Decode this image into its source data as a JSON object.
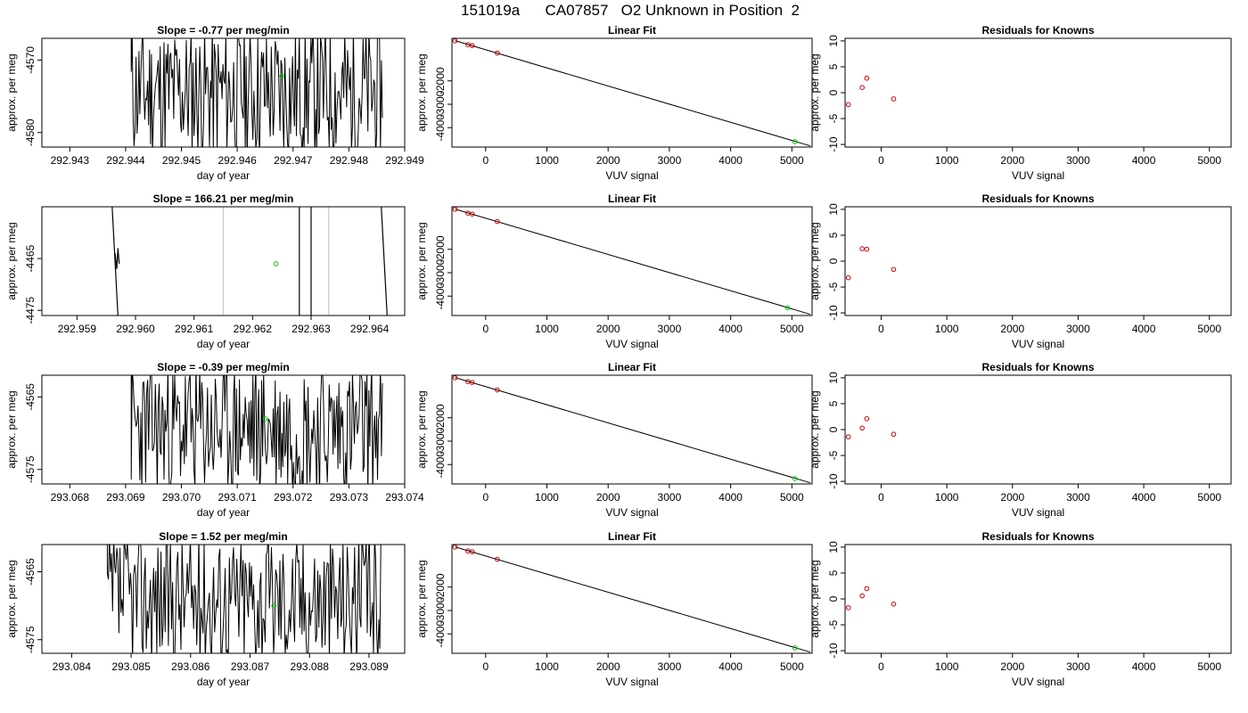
{
  "figure": {
    "title": "151019a      CA07857   O2 Unknown in Position  2"
  },
  "chart_data": [
    {
      "type": "line",
      "title": "Slope =  -0.77  per meg/min",
      "xlabel": "day of year",
      "ylabel": "approx. per meg",
      "xlim": [
        292.9425,
        292.949
      ],
      "ylim": [
        -4582,
        -4567
      ],
      "xticks": [
        "292.943",
        "292.944",
        "292.945",
        "292.946",
        "292.947",
        "292.948",
        "292.949"
      ],
      "yticks": [
        "-4570",
        "-4580"
      ],
      "trace": {
        "x_start": 292.9441,
        "x_end": 292.9486,
        "y_low": -4582,
        "y_high": -4567,
        "seed": 11
      },
      "unknown_point": {
        "x": 292.9468,
        "y": -4572.2,
        "color": "#00cc00"
      },
      "gray_lines": []
    },
    {
      "type": "scatter",
      "title": "Linear Fit",
      "xlabel": "VUV signal",
      "ylabel": "approx. per meg",
      "xlim": [
        -550,
        5330
      ],
      "ylim": [
        -4830,
        -180
      ],
      "xticks": [
        "0",
        "1000",
        "2000",
        "3000",
        "4000",
        "5000"
      ],
      "yticks": [
        "-2000",
        "-3000",
        "-4000"
      ],
      "fit_line": {
        "x": [
          -500,
          5300
        ],
        "y": [
          -280,
          -4780
        ]
      },
      "knowns": {
        "x": [
          -500,
          -290,
          -220,
          190
        ],
        "y": [
          -290,
          -450,
          -490,
          -810
        ],
        "color": "#cc0000"
      },
      "unknown_point": {
        "x": 5050,
        "y": -4600,
        "color": "#00cc00"
      }
    },
    {
      "type": "scatter",
      "title": "Residuals for Knowns",
      "xlabel": "VUV signal",
      "ylabel": "approx. per meg",
      "xlim": [
        -550,
        5330
      ],
      "ylim": [
        -10.5,
        10.5
      ],
      "xticks": [
        "0",
        "1000",
        "2000",
        "3000",
        "4000",
        "5000"
      ],
      "yticks": [
        "-10",
        "-5",
        "0",
        "5",
        "10"
      ],
      "points": {
        "x": [
          -500,
          -290,
          -220,
          190
        ],
        "y": [
          -2.3,
          1.0,
          2.8,
          -1.2
        ],
        "color": "#cc0000"
      }
    },
    {
      "type": "line",
      "title": "Slope =  166.21  per meg/min",
      "xlabel": "day of year",
      "ylabel": "approx. per meg",
      "xlim": [
        292.9584,
        292.9646
      ],
      "ylim": [
        -4476,
        -4455
      ],
      "xticks": [
        "292.959",
        "292.960",
        "292.961",
        "292.962",
        "292.963",
        "292.964"
      ],
      "yticks": [
        "-4465",
        "-4475"
      ],
      "segments": [
        {
          "x": [
            292.9596,
            292.9597
          ],
          "y": [
            -4455,
            -4476
          ]
        },
        {
          "x": [
            292.95965,
            292.95968,
            292.9597,
            292.95972
          ],
          "y": [
            -4464,
            -4467,
            -4463,
            -4466
          ]
        },
        {
          "x": [
            292.9628,
            292.9628
          ],
          "y": [
            -4455,
            -4476
          ]
        },
        {
          "x": [
            292.963,
            292.963
          ],
          "y": [
            -4455,
            -4476
          ]
        },
        {
          "x": [
            292.9642,
            292.9643
          ],
          "y": [
            -4455,
            -4476
          ]
        }
      ],
      "unknown_point": {
        "x": 292.9624,
        "y": -4466.0,
        "color": "#00cc00"
      },
      "gray_lines": [
        292.9615,
        292.9633
      ]
    },
    {
      "type": "scatter",
      "title": "Linear Fit",
      "xlabel": "VUV signal",
      "ylabel": "approx. per meg",
      "xlim": [
        -550,
        5330
      ],
      "ylim": [
        -4830,
        -180
      ],
      "xticks": [
        "0",
        "1000",
        "2000",
        "3000",
        "4000",
        "5000"
      ],
      "yticks": [
        "-2000",
        "-3000",
        "-4000"
      ],
      "fit_line": {
        "x": [
          -500,
          5300
        ],
        "y": [
          -280,
          -4780
        ]
      },
      "knowns": {
        "x": [
          -500,
          -290,
          -220,
          190
        ],
        "y": [
          -290,
          -450,
          -490,
          -810
        ],
        "color": "#cc0000"
      },
      "unknown_point": {
        "x": 4930,
        "y": -4500,
        "color": "#00cc00"
      }
    },
    {
      "type": "scatter",
      "title": "Residuals for Knowns",
      "xlabel": "VUV signal",
      "ylabel": "approx. per meg",
      "xlim": [
        -550,
        5330
      ],
      "ylim": [
        -10.5,
        10.5
      ],
      "xticks": [
        "0",
        "1000",
        "2000",
        "3000",
        "4000",
        "5000"
      ],
      "yticks": [
        "-10",
        "-5",
        "0",
        "5",
        "10"
      ],
      "points": {
        "x": [
          -500,
          -290,
          -220,
          190
        ],
        "y": [
          -3.2,
          2.4,
          2.3,
          -1.6
        ],
        "color": "#cc0000"
      }
    },
    {
      "type": "line",
      "title": "Slope =  -0.39  per meg/min",
      "xlabel": "day of year",
      "ylabel": "approx. per meg",
      "xlim": [
        293.0675,
        293.074
      ],
      "ylim": [
        -4577,
        -4562
      ],
      "xticks": [
        "293.068",
        "293.069",
        "293.070",
        "293.071",
        "293.072",
        "293.073",
        "293.074"
      ],
      "yticks": [
        "-4565",
        "-4575"
      ],
      "trace": {
        "x_start": 293.0691,
        "x_end": 293.0736,
        "y_low": -4577,
        "y_high": -4562,
        "seed": 23
      },
      "unknown_point": {
        "x": 293.0715,
        "y": -4568.0,
        "color": "#00cc00"
      },
      "gray_lines": []
    },
    {
      "type": "scatter",
      "title": "Linear Fit",
      "xlabel": "VUV signal",
      "ylabel": "approx. per meg",
      "xlim": [
        -550,
        5330
      ],
      "ylim": [
        -4830,
        -180
      ],
      "xticks": [
        "0",
        "1000",
        "2000",
        "3000",
        "4000",
        "5000"
      ],
      "yticks": [
        "-2000",
        "-3000",
        "-4000"
      ],
      "fit_line": {
        "x": [
          -500,
          5300
        ],
        "y": [
          -280,
          -4780
        ]
      },
      "knowns": {
        "x": [
          -500,
          -290,
          -220,
          190
        ],
        "y": [
          -290,
          -450,
          -490,
          -810
        ],
        "color": "#cc0000"
      },
      "unknown_point": {
        "x": 5050,
        "y": -4600,
        "color": "#00cc00"
      }
    },
    {
      "type": "scatter",
      "title": "Residuals for Knowns",
      "xlabel": "VUV signal",
      "ylabel": "approx. per meg",
      "xlim": [
        -550,
        5330
      ],
      "ylim": [
        -10.5,
        10.5
      ],
      "xticks": [
        "0",
        "1000",
        "2000",
        "3000",
        "4000",
        "5000"
      ],
      "yticks": [
        "-10",
        "-5",
        "0",
        "5",
        "10"
      ],
      "points": {
        "x": [
          -500,
          -290,
          -220,
          190
        ],
        "y": [
          -1.4,
          0.3,
          2.1,
          -0.9
        ],
        "color": "#cc0000"
      }
    },
    {
      "type": "line",
      "title": "Slope =  1.52  per meg/min",
      "xlabel": "day of year",
      "ylabel": "approx. per meg",
      "xlim": [
        293.0835,
        293.0896
      ],
      "ylim": [
        -4577,
        -4561
      ],
      "xticks": [
        "293.084",
        "293.085",
        "293.086",
        "293.087",
        "293.088",
        "293.089"
      ],
      "yticks": [
        "-4565",
        "-4575"
      ],
      "trace": {
        "x_start": 293.0846,
        "x_end": 293.0892,
        "y_low": -4577,
        "y_high": -4561,
        "seed": 37
      },
      "unknown_point": {
        "x": 293.0874,
        "y": -4570.0,
        "color": "#00cc00"
      },
      "gray_lines": []
    },
    {
      "type": "scatter",
      "title": "Linear Fit",
      "xlabel": "VUV signal",
      "ylabel": "approx. per meg",
      "xlim": [
        -550,
        5330
      ],
      "ylim": [
        -4830,
        -180
      ],
      "xticks": [
        "0",
        "1000",
        "2000",
        "3000",
        "4000",
        "5000"
      ],
      "yticks": [
        "-2000",
        "-3000",
        "-4000"
      ],
      "fit_line": {
        "x": [
          -500,
          5300
        ],
        "y": [
          -280,
          -4780
        ]
      },
      "knowns": {
        "x": [
          -500,
          -290,
          -220,
          190
        ],
        "y": [
          -290,
          -450,
          -490,
          -810
        ],
        "color": "#cc0000"
      },
      "unknown_point": {
        "x": 5050,
        "y": -4600,
        "color": "#00cc00"
      }
    },
    {
      "type": "scatter",
      "title": "Residuals for Knowns",
      "xlabel": "VUV signal",
      "ylabel": "approx. per meg",
      "xlim": [
        -550,
        5330
      ],
      "ylim": [
        -10.5,
        10.5
      ],
      "xticks": [
        "0",
        "1000",
        "2000",
        "3000",
        "4000",
        "5000"
      ],
      "yticks": [
        "-10",
        "-5",
        "0",
        "5",
        "10"
      ],
      "points": {
        "x": [
          -500,
          -290,
          -220,
          190
        ],
        "y": [
          -1.7,
          0.6,
          2.0,
          -1.0
        ],
        "color": "#cc0000"
      }
    }
  ]
}
